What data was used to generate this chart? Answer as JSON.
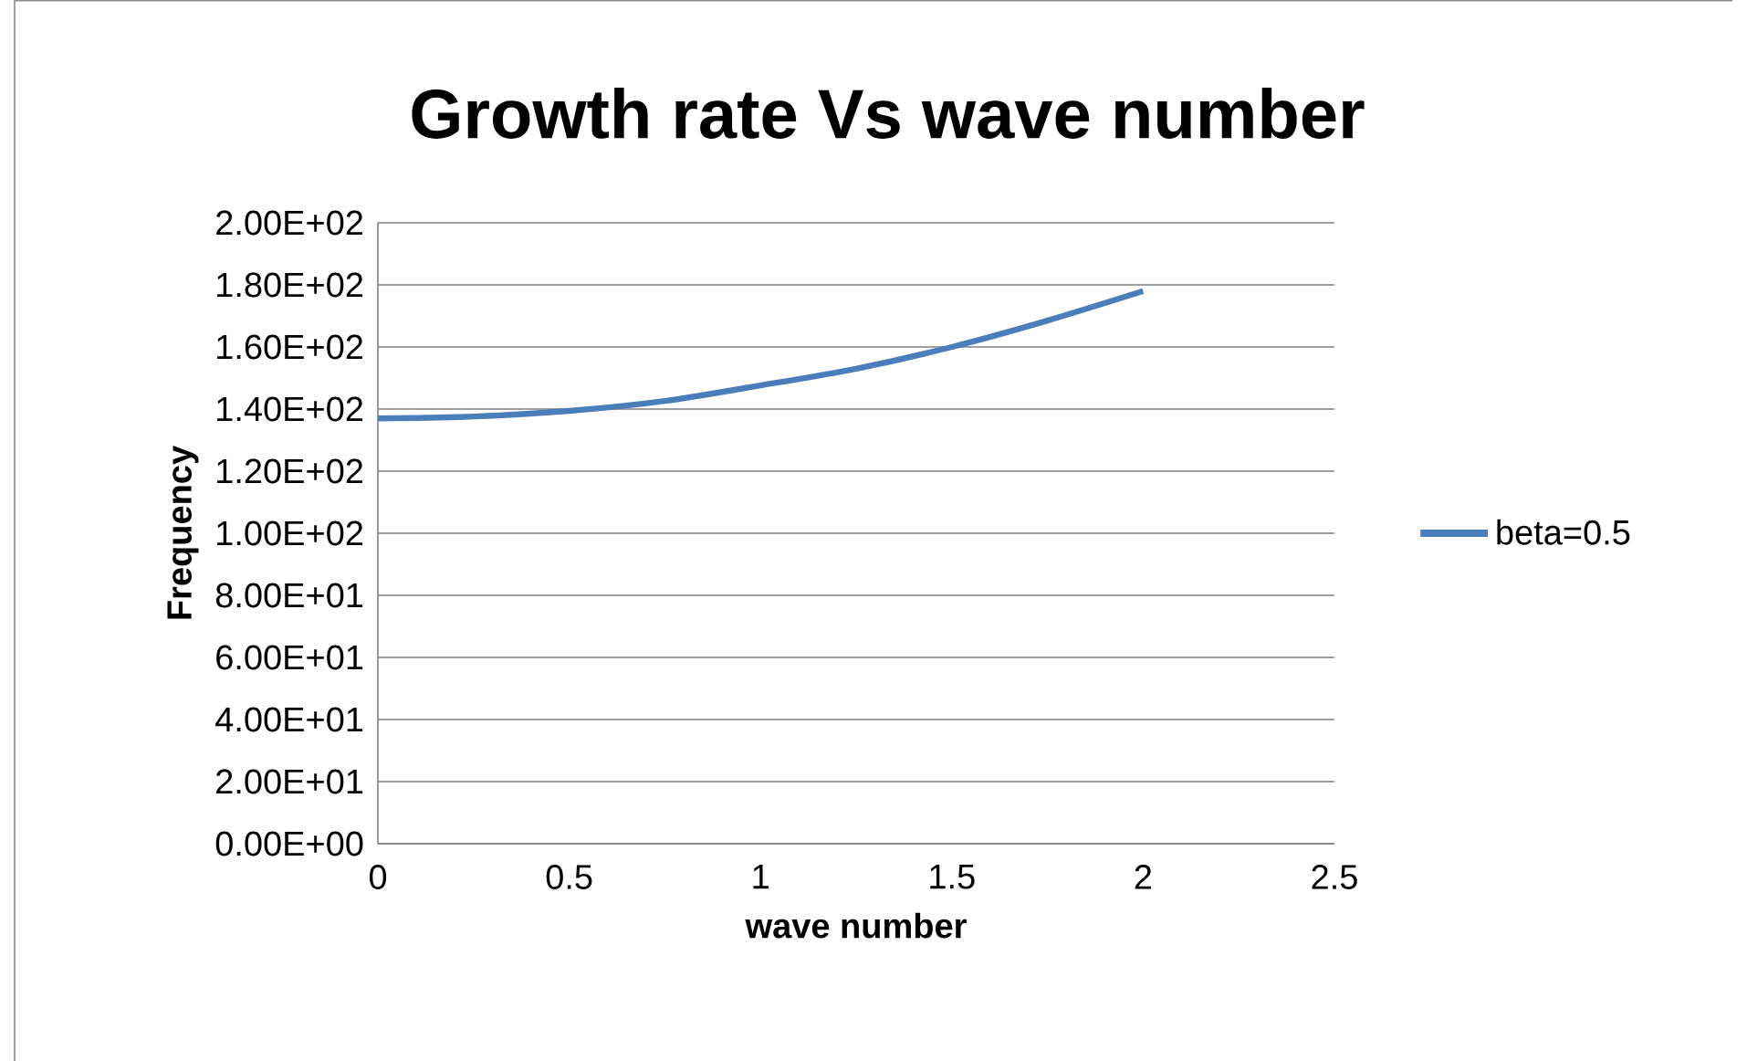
{
  "chart_data": {
    "type": "line",
    "title": "Growth rate Vs wave number",
    "xlabel": "wave number",
    "ylabel": "Frequency",
    "x": [
      0,
      0.25,
      0.5,
      0.75,
      1,
      1.25,
      1.5,
      1.75,
      2
    ],
    "series": [
      {
        "name": "beta=0.5",
        "color": "#4a7ebb",
        "values": [
          137,
          137.6,
          139.4,
          142.6,
          147.6,
          153,
          160,
          168.5,
          178
        ]
      }
    ],
    "xlim": [
      0,
      2.5
    ],
    "xticks": [
      0,
      0.5,
      1,
      1.5,
      2,
      2.5
    ],
    "ylim": [
      0,
      200
    ],
    "yticks": [
      {
        "value": 0,
        "label": "0.00E+00"
      },
      {
        "value": 20,
        "label": "2.00E+01"
      },
      {
        "value": 40,
        "label": "4.00E+01"
      },
      {
        "value": 60,
        "label": "6.00E+01"
      },
      {
        "value": 80,
        "label": "8.00E+01"
      },
      {
        "value": 100,
        "label": "1.00E+02"
      },
      {
        "value": 120,
        "label": "1.20E+02"
      },
      {
        "value": 140,
        "label": "1.40E+02"
      },
      {
        "value": 160,
        "label": "1.60E+02"
      },
      {
        "value": 180,
        "label": "1.80E+02"
      },
      {
        "value": 200,
        "label": "2.00E+02"
      }
    ],
    "grid": "y",
    "legend": "right",
    "marker": "none",
    "line_style": "solid"
  }
}
